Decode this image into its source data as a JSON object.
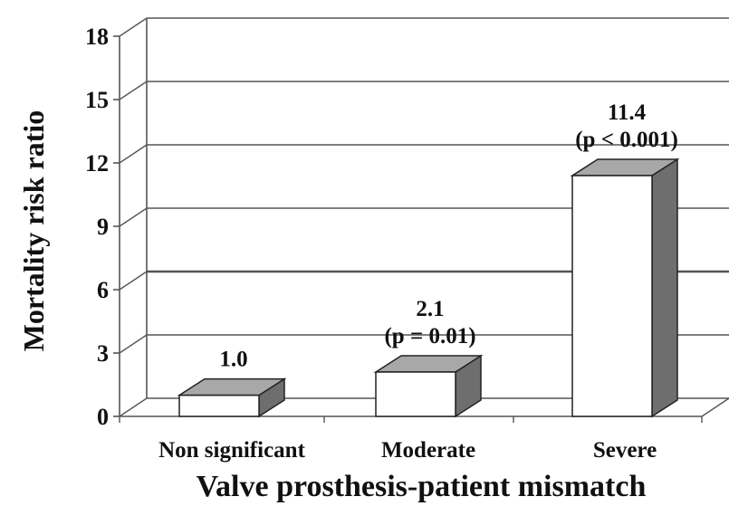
{
  "chart_data": {
    "type": "bar",
    "categories": [
      "Non significant",
      "Moderate",
      "Severe"
    ],
    "values": [
      1.0,
      2.1,
      11.4
    ],
    "data_labels": [
      [
        "1.0"
      ],
      [
        "2.1",
        "(p = 0.01)"
      ],
      [
        "11.4",
        "(p < 0.001)"
      ]
    ],
    "xlabel": "Valve prosthesis-patient mismatch",
    "ylabel": "Mortality risk ratio",
    "ylim": [
      0,
      18
    ],
    "yticks": [
      0,
      3,
      6,
      9,
      12,
      15,
      18
    ],
    "grid": true,
    "style": "3d"
  },
  "colors": {
    "bar_front": "#ffffff",
    "bar_top": "#a8a8a8",
    "bar_side": "#6e6e6e",
    "gridline": "#555555",
    "text": "#111111"
  }
}
